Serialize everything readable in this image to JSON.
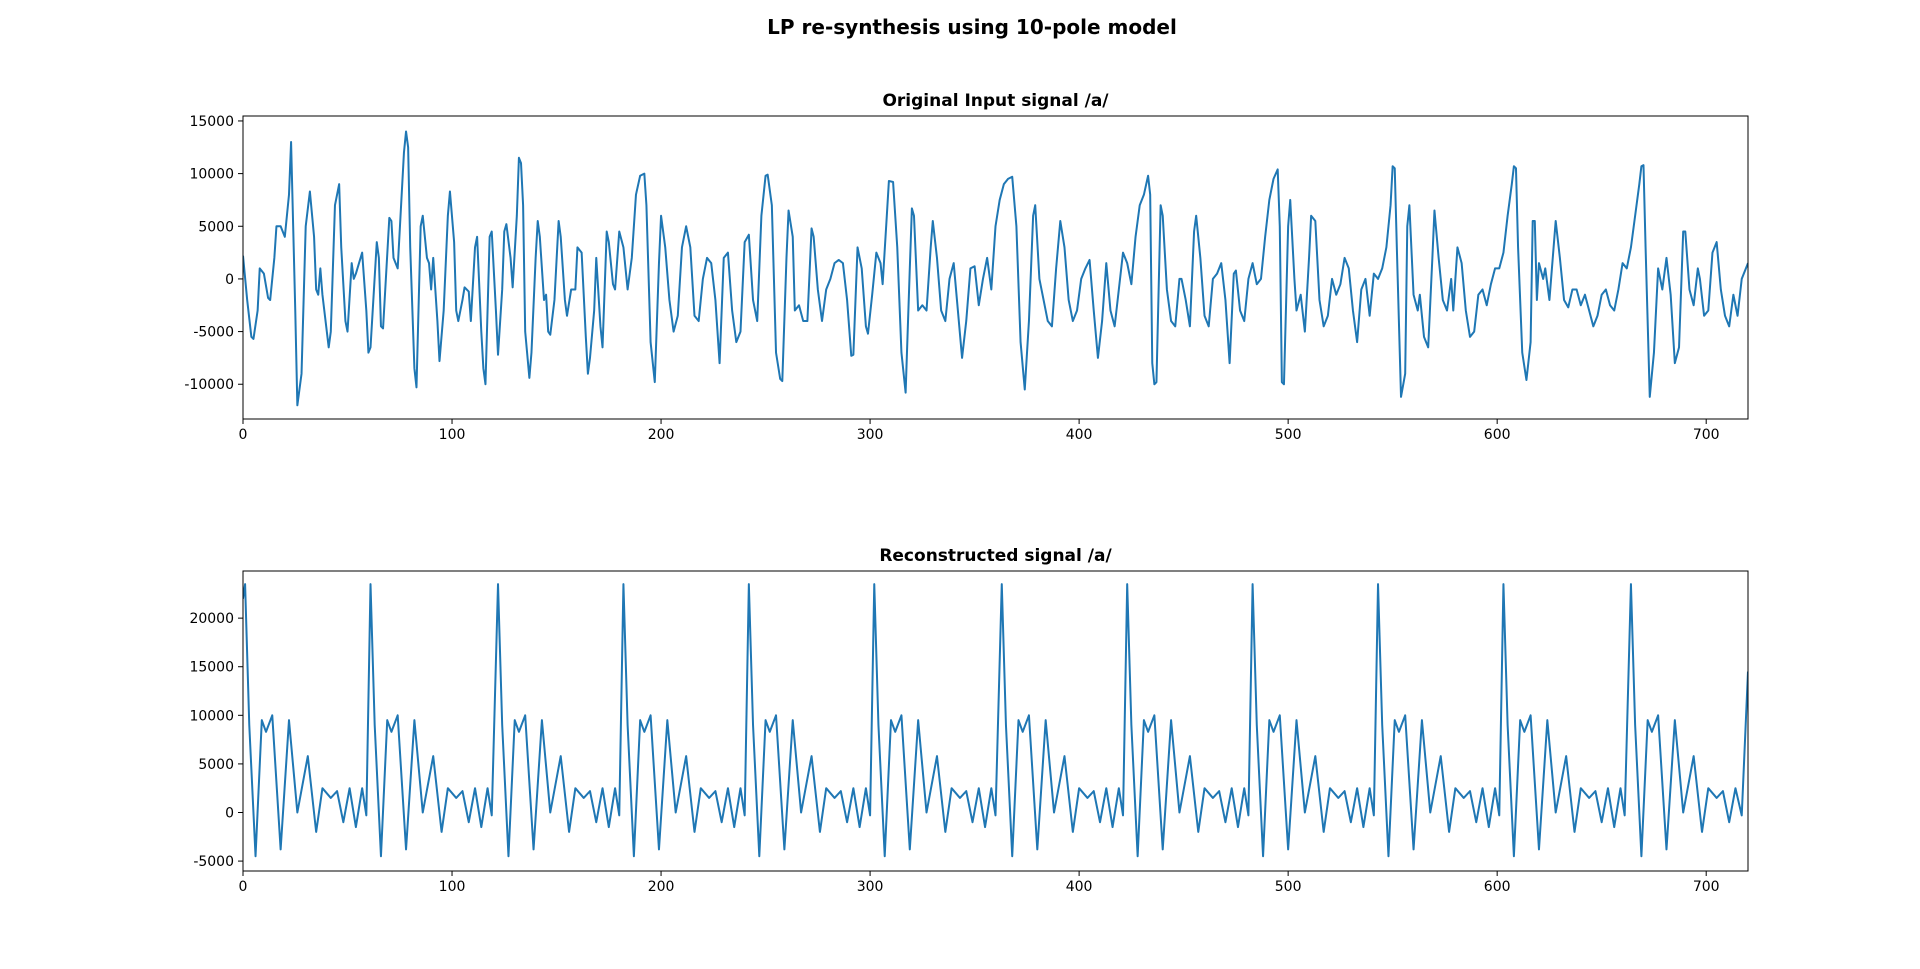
{
  "title": "LP re-synthesis using 10-pole model",
  "chart_data": [
    {
      "type": "line",
      "title": "Original Input signal /a/",
      "color": "#1f77b4",
      "xlim": [
        0,
        720
      ],
      "ylim": [
        -13300,
        15470
      ],
      "xticks": [
        0,
        100,
        200,
        300,
        400,
        500,
        600,
        700
      ],
      "yticks": [
        -10000,
        -5000,
        0,
        5000,
        10000,
        15000
      ],
      "x": [
        0,
        2,
        4,
        5,
        7,
        8,
        10,
        12,
        13,
        15,
        16,
        18,
        20,
        22,
        23,
        24,
        25,
        26,
        28,
        30,
        32,
        34,
        35,
        36,
        37,
        38,
        41,
        42,
        44,
        46,
        47,
        49,
        50,
        52,
        53,
        54,
        57,
        59,
        60,
        61,
        64,
        65,
        66,
        67,
        70,
        71,
        72,
        74,
        77,
        78,
        79,
        80,
        82,
        83,
        85,
        86,
        88,
        89,
        90,
        91,
        93,
        94,
        96,
        98,
        99,
        101,
        102,
        103,
        105,
        106,
        108,
        109,
        111,
        112,
        114,
        115,
        116,
        118,
        119,
        121,
        122,
        124,
        125,
        126,
        128,
        129,
        131,
        132,
        133,
        134,
        135,
        137,
        138,
        140,
        141,
        142,
        144,
        145,
        146,
        147,
        149,
        151,
        152,
        154,
        155,
        157,
        159,
        160,
        162,
        164,
        165,
        166,
        168,
        169,
        171,
        172,
        174,
        175,
        177,
        178,
        180,
        182,
        184,
        186,
        188,
        190,
        192,
        193,
        195,
        197,
        199,
        200,
        202,
        204,
        206,
        208,
        210,
        212,
        214,
        216,
        218,
        220,
        222,
        224,
        226,
        228,
        230,
        232,
        234,
        236,
        238,
        240,
        242,
        244,
        246,
        248,
        250,
        251,
        253,
        255,
        257,
        258,
        260,
        261,
        263,
        264,
        266,
        268,
        270,
        272,
        273,
        275,
        277,
        279,
        281,
        283,
        285,
        287,
        289,
        291,
        292,
        294,
        296,
        298,
        299,
        301,
        303,
        305,
        306,
        308,
        309,
        311,
        313,
        315,
        317,
        319,
        320,
        321,
        323,
        325,
        327,
        329,
        330,
        332,
        334,
        336,
        338,
        340,
        342,
        344,
        346,
        348,
        350,
        352,
        354,
        356,
        358,
        360,
        362,
        364,
        366,
        368,
        370,
        372,
        374,
        376,
        378,
        379,
        381,
        383,
        385,
        387,
        389,
        391,
        393,
        395,
        397,
        399,
        401,
        403,
        405,
        407,
        409,
        411,
        413,
        415,
        417,
        419,
        421,
        423,
        425,
        427,
        429,
        431,
        433,
        434,
        435,
        436,
        437,
        439,
        440,
        442,
        444,
        446,
        448,
        449,
        451,
        453,
        455,
        456,
        458,
        460,
        462,
        464,
        466,
        468,
        470,
        472,
        474,
        475,
        477,
        479,
        481,
        483,
        485,
        487,
        489,
        491,
        493,
        495,
        496,
        497,
        498,
        500,
        501,
        503,
        504,
        506,
        508,
        510,
        511,
        513,
        515,
        517,
        519,
        521,
        523,
        525,
        527,
        529,
        531,
        533,
        535,
        537,
        539,
        541,
        543,
        545,
        547,
        549,
        550,
        551,
        552,
        554,
        556,
        557,
        558,
        560,
        562,
        563,
        565,
        567,
        569,
        570,
        572,
        574,
        576,
        578,
        579,
        581,
        583,
        585,
        587,
        589,
        591,
        593,
        595,
        597,
        599,
        601,
        603,
        605,
        607,
        608,
        609,
        610,
        612,
        614,
        616,
        617,
        618,
        619,
        620,
        622,
        623,
        625,
        627,
        628,
        630,
        632,
        634,
        636,
        638,
        640,
        642,
        644,
        646,
        648,
        650,
        652,
        654,
        656,
        658,
        660,
        662,
        664,
        666,
        668,
        669,
        670,
        671,
        673,
        675,
        677,
        679,
        681,
        683,
        685,
        687,
        689,
        690,
        692,
        694,
        696,
        697,
        699,
        701,
        703,
        705,
        707,
        709,
        711,
        713,
        715,
        717,
        720
      ],
      "values": [
        2200,
        -2000,
        -5500,
        -5700,
        -3000,
        1000,
        500,
        -1800,
        -2000,
        2000,
        5000,
        5000,
        4000,
        8000,
        13000,
        5000,
        -3000,
        -12000,
        -9000,
        5000,
        8300,
        4000,
        -1000,
        -1500,
        1000,
        -1500,
        -6500,
        -5000,
        7000,
        9000,
        3000,
        -4000,
        -5000,
        1500,
        0,
        500,
        2500,
        -3000,
        -7000,
        -6500,
        3500,
        2000,
        -4500,
        -4700,
        5800,
        5500,
        2000,
        1000,
        12000,
        14000,
        12500,
        3000,
        -8500,
        -10300,
        5000,
        6000,
        2000,
        1500,
        -1000,
        2000,
        -4000,
        -7800,
        -3000,
        6000,
        8300,
        3500,
        -3000,
        -4000,
        -2000,
        -800,
        -1200,
        -4000,
        3000,
        4000,
        -5000,
        -8500,
        -10000,
        4000,
        4500,
        -3000,
        -7200,
        -1000,
        4500,
        5200,
        2000,
        -800,
        6000,
        11500,
        11000,
        7000,
        -5000,
        -9400,
        -7000,
        2000,
        5500,
        4000,
        -2000,
        -1500,
        -5000,
        -5300,
        -2000,
        5500,
        4000,
        -2000,
        -3500,
        -1000,
        -1000,
        3000,
        2500,
        -5500,
        -9000,
        -7500,
        -3000,
        2000,
        -4500,
        -6500,
        4500,
        3500,
        -500,
        -1000,
        4500,
        3000,
        -1000,
        2000,
        8000,
        9800,
        10000,
        7000,
        -6000,
        -9800,
        1500,
        6000,
        3000,
        -2000,
        -5000,
        -3500,
        3000,
        5000,
        3000,
        -3500,
        -4000,
        0,
        2000,
        1500,
        -2000,
        -8000,
        2000,
        2500,
        -3000,
        -6000,
        -5000,
        3500,
        4200,
        -2000,
        -4000,
        6000,
        9800,
        9900,
        7000,
        -7000,
        -9500,
        -9700,
        2000,
        6500,
        4000,
        -3000,
        -2500,
        -4000,
        -4000,
        4800,
        4000,
        -1000,
        -4000,
        -1000,
        0,
        1500,
        1800,
        1500,
        -2000,
        -7300,
        -7200,
        3000,
        1000,
        -4500,
        -5200,
        -1500,
        2500,
        1500,
        -500,
        6000,
        9300,
        9200,
        3000,
        -7000,
        -10800,
        1000,
        6700,
        6000,
        -3000,
        -2500,
        -3000,
        3000,
        5500,
        2000,
        -3000,
        -4000,
        0,
        1500,
        -3000,
        -7500,
        -4000,
        1000,
        1200,
        -2500,
        0,
        2000,
        -1000,
        5000,
        7500,
        9000,
        9500,
        9700,
        5000,
        -6000,
        -10500,
        -4000,
        6000,
        7000,
        0,
        -2000,
        -4000,
        -4500,
        1000,
        5500,
        3000,
        -2000,
        -4000,
        -3000,
        0,
        1000,
        1800,
        -3000,
        -7500,
        -4000,
        1500,
        -3000,
        -4500,
        -1000,
        2500,
        1500,
        -500,
        4000,
        7000,
        8000,
        9800,
        8000,
        -8000,
        -10000,
        -9800,
        7000,
        6000,
        -1000,
        -4000,
        -4500,
        0,
        0,
        -2000,
        -4500,
        4500,
        6000,
        2000,
        -3500,
        -4500,
        0,
        500,
        1500,
        -2000,
        -8000,
        500,
        800,
        -3000,
        -4000,
        0,
        1500,
        -500,
        0,
        4000,
        7500,
        9500,
        10400,
        5000,
        -9800,
        -10000,
        5000,
        7500,
        0,
        -3000,
        -1500,
        -5000,
        2000,
        6000,
        5500,
        -2000,
        -4500,
        -3500,
        0,
        -1500,
        -500,
        2000,
        1000,
        -3000,
        -6000,
        -1000,
        0,
        -3500,
        500,
        0,
        1000,
        3000,
        7000,
        10700,
        10500,
        3000,
        -11200,
        -9000,
        5000,
        7000,
        -1500,
        -3000,
        -1500,
        -5500,
        -6500,
        2000,
        6500,
        2000,
        -2000,
        -3000,
        0,
        -3000,
        3000,
        1500,
        -3000,
        -5500,
        -5000,
        -1500,
        -1000,
        -2500,
        -500,
        1000,
        1000,
        2500,
        6000,
        9000,
        10700,
        10500,
        3000,
        -7000,
        -9600,
        -6000,
        5500,
        5500,
        -2000,
        1500,
        0,
        1000,
        -2000,
        3000,
        5500,
        2000,
        -2000,
        -2700,
        -1000,
        -1000,
        -2500,
        -1500,
        -3000,
        -4500,
        -3500,
        -1500,
        -1000,
        -2500,
        -3000,
        -1000,
        1500,
        1000,
        3000,
        6000,
        9000,
        10700,
        10800,
        3000,
        -11200,
        -7000,
        1000,
        -1000,
        2000,
        -1500,
        -8000,
        -6500,
        4500,
        4500,
        -1000,
        -2500,
        1000,
        0,
        -3500,
        -3000,
        2500,
        3500,
        -1000,
        -3500,
        -4500,
        -1500,
        -3500,
        0,
        1500
      ]
    },
    {
      "type": "line",
      "title": "Reconstructed signal /a/",
      "color": "#1f77b4",
      "xlim": [
        0,
        720
      ],
      "ylim": [
        -6020,
        24850
      ],
      "xticks": [
        0,
        100,
        200,
        300,
        400,
        500,
        600,
        700
      ],
      "yticks": [
        -5000,
        0,
        5000,
        10000,
        15000,
        20000
      ],
      "x": [
        0,
        1,
        3,
        6,
        9,
        11,
        14,
        18,
        22,
        26,
        31,
        35,
        38,
        42,
        45,
        48,
        51,
        54,
        57,
        59,
        61,
        63,
        66,
        69,
        71,
        74,
        78,
        82,
        86,
        91,
        95,
        98,
        102,
        105,
        108,
        111,
        114,
        117,
        119,
        122,
        124,
        127,
        130,
        132,
        135,
        139,
        143,
        147,
        152,
        156,
        159,
        163,
        166,
        169,
        172,
        175,
        178,
        180,
        182,
        184,
        187,
        190,
        192,
        195,
        199,
        203,
        207,
        212,
        216,
        219,
        223,
        226,
        229,
        232,
        235,
        238,
        240,
        242,
        244,
        247,
        250,
        252,
        255,
        259,
        263,
        267,
        272,
        276,
        279,
        283,
        286,
        289,
        292,
        295,
        298,
        300,
        302,
        304,
        307,
        310,
        312,
        315,
        319,
        323,
        327,
        332,
        336,
        339,
        343,
        346,
        349,
        352,
        355,
        358,
        360,
        363,
        365,
        368,
        371,
        373,
        376,
        380,
        384,
        388,
        393,
        397,
        400,
        404,
        407,
        410,
        413,
        416,
        419,
        421,
        423,
        425,
        428,
        431,
        433,
        436,
        440,
        444,
        448,
        453,
        457,
        460,
        464,
        467,
        470,
        473,
        476,
        479,
        481,
        483,
        485,
        488,
        491,
        493,
        496,
        500,
        504,
        508,
        513,
        517,
        520,
        524,
        527,
        530,
        533,
        536,
        539,
        541,
        543,
        545,
        548,
        551,
        553,
        556,
        560,
        564,
        568,
        573,
        577,
        580,
        584,
        587,
        590,
        593,
        596,
        599,
        601,
        603,
        605,
        608,
        611,
        613,
        616,
        620,
        624,
        628,
        633,
        637,
        640,
        644,
        647,
        650,
        653,
        656,
        659,
        661,
        664,
        666,
        669,
        672,
        674,
        677,
        681,
        685,
        689,
        694,
        698,
        701,
        705,
        708,
        711,
        714,
        717,
        720
      ],
      "values": [
        22000,
        23500,
        9000,
        -4500,
        9500,
        8300,
        10000,
        -3800,
        9500,
        0,
        5800,
        -2000,
        2500,
        1500,
        2200,
        -1000,
        2500,
        -1500,
        2500,
        -300,
        23500,
        9000,
        -4500,
        9500,
        8300,
        10000,
        -3800,
        9500,
        0,
        5800,
        -2000,
        2500,
        1500,
        2200,
        -1000,
        2500,
        -1500,
        2500,
        -300,
        23500,
        9000,
        -4500,
        9500,
        8300,
        10000,
        -3800,
        9500,
        0,
        5800,
        -2000,
        2500,
        1500,
        2200,
        -1000,
        2500,
        -1500,
        2500,
        -300,
        23500,
        9000,
        -4500,
        9500,
        8300,
        10000,
        -3800,
        9500,
        0,
        5800,
        -2000,
        2500,
        1500,
        2200,
        -1000,
        2500,
        -1500,
        2500,
        -300,
        23500,
        9000,
        -4500,
        9500,
        8300,
        10000,
        -3800,
        9500,
        0,
        5800,
        -2000,
        2500,
        1500,
        2200,
        -1000,
        2500,
        -1500,
        2500,
        -300,
        23500,
        9000,
        -4500,
        9500,
        8300,
        10000,
        -3800,
        9500,
        0,
        5800,
        -2000,
        2500,
        1500,
        2200,
        -1000,
        2500,
        -1500,
        2500,
        -300,
        23500,
        9000,
        -4500,
        9500,
        8300,
        10000,
        -3800,
        9500,
        0,
        5800,
        -2000,
        2500,
        1500,
        2200,
        -1000,
        2500,
        -1500,
        2500,
        -300,
        23500,
        9000,
        -4500,
        9500,
        8300,
        10000,
        -3800,
        9500,
        0,
        5800,
        -2000,
        2500,
        1500,
        2200,
        -1000,
        2500,
        -1500,
        2500,
        -300,
        23500,
        9000,
        -4500,
        9500,
        8300,
        10000,
        -3800,
        9500,
        0,
        5800,
        -2000,
        2500,
        1500,
        2200,
        -1000,
        2500,
        -1500,
        2500,
        -300,
        23500,
        9000,
        -4500,
        9500,
        8300,
        10000,
        -3800,
        9500,
        0,
        5800,
        -2000,
        2500,
        1500,
        2200,
        -1000,
        2500,
        -1500,
        2500,
        -300,
        23500,
        9000,
        -4500,
        9500,
        8300,
        10000,
        -3800,
        9500,
        0,
        5800,
        -2000,
        2500,
        1500,
        2200,
        -1000,
        2500,
        -1500,
        2500,
        -300,
        23500,
        9000,
        -4500,
        9500,
        8300,
        10000,
        -3800,
        9500,
        0,
        5800,
        -2000,
        2500,
        1500,
        2200,
        -1000,
        2500,
        -300,
        14500
      ]
    }
  ]
}
